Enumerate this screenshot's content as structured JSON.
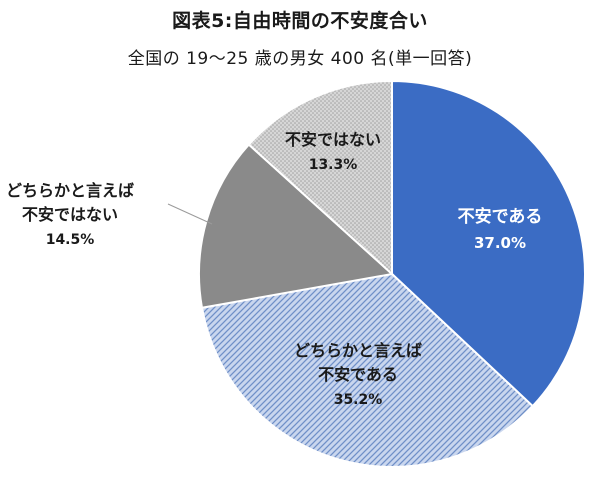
{
  "header": {
    "title": "図表5:自由時間の不安度合い",
    "subtitle": "全国の 19～25 歳の男女 400 名(単一回答)"
  },
  "chart_data": {
    "type": "pie",
    "title": "図表5:自由時間の不安度合い",
    "subtitle": "全国の 19～25 歳の男女 400 名(単一回答)",
    "start": "12 o'clock",
    "direction": "clockwise",
    "slices": [
      {
        "lines": [
          "不安である"
        ],
        "value": 37.0,
        "value_label": "37.0%",
        "color": "#3b6cc4",
        "fill_style": "solid",
        "text_color": "#ffffff",
        "label_placement": "inside"
      },
      {
        "lines": [
          "どちらかと言えば",
          "不安である"
        ],
        "value": 35.2,
        "value_label": "35.2%",
        "color": "#8fa9d6",
        "fill_style": "hatched",
        "text_color": "#1a1a1a",
        "label_placement": "inside"
      },
      {
        "lines": [
          "どちらかと言えば",
          "不安ではない"
        ],
        "value": 14.5,
        "value_label": "14.5%",
        "color": "#8a8a8a",
        "fill_style": "solid",
        "text_color": "#1a1a1a",
        "label_placement": "outside"
      },
      {
        "lines": [
          "不安ではない"
        ],
        "value": 13.3,
        "value_label": "13.3%",
        "color": "#cdcdcd",
        "fill_style": "dotted",
        "text_color": "#1a1a1a",
        "label_placement": "inside"
      }
    ]
  }
}
